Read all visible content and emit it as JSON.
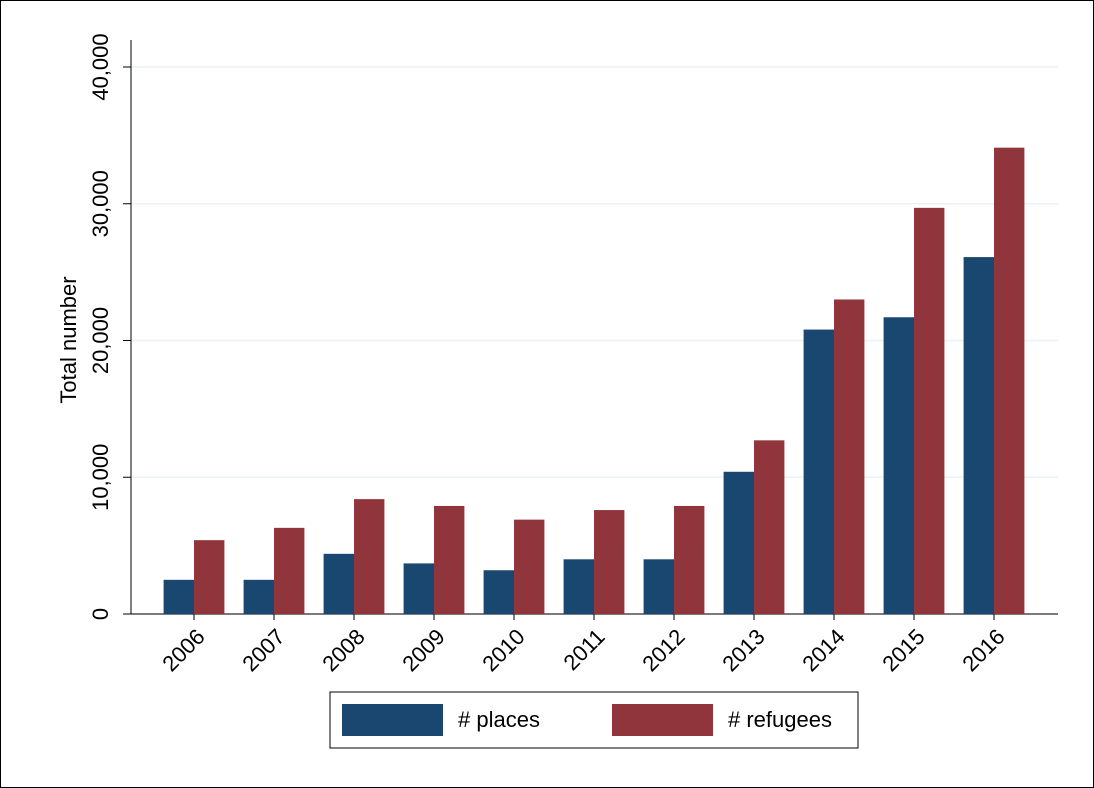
{
  "chart_data": {
    "type": "bar",
    "y_label": "Total number",
    "categories": [
      "2006",
      "2007",
      "2008",
      "2009",
      "2010",
      "2011",
      "2012",
      "2013",
      "2014",
      "2015",
      "2016"
    ],
    "series": [
      {
        "name": "# places",
        "color": "#1a476f",
        "values": [
          2500,
          2500,
          4400,
          3700,
          3200,
          4000,
          4000,
          10400,
          20800,
          21700,
          26100
        ]
      },
      {
        "name": "# refugees",
        "color": "#90353b",
        "values": [
          5400,
          6300,
          8400,
          7900,
          6900,
          7600,
          7900,
          12700,
          23000,
          29700,
          34100
        ]
      }
    ],
    "ylim": [
      0,
      40000
    ],
    "yticks": [
      0,
      {
        "value": 10000,
        "label": "10,000"
      },
      {
        "value": 20000,
        "label": "20,000"
      },
      {
        "value": 30000,
        "label": "30,000"
      },
      {
        "value": 40000,
        "label": "40,000"
      }
    ],
    "grid": true,
    "legend": "bottom"
  }
}
